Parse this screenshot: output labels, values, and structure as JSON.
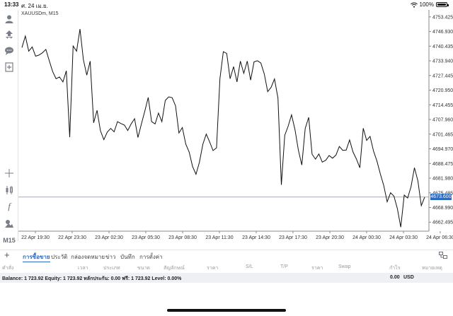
{
  "status_bar": {
    "time": "13:33",
    "date": "ศ. 24 เม.ย.",
    "battery": "100%"
  },
  "toolbar": {
    "items": [
      {
        "name": "profile-icon"
      },
      {
        "name": "trade-arrows-icon"
      },
      {
        "name": "chat-icon"
      },
      {
        "name": "add-document-icon"
      },
      {
        "name": "crosshair-icon"
      },
      {
        "name": "candlesticks-icon"
      },
      {
        "name": "indicator-icon"
      },
      {
        "name": "objects-icon"
      }
    ],
    "timeframe": "M15"
  },
  "chart_data": {
    "type": "line",
    "symbol_label": "XAUUSDm, M15",
    "y_ticks": [
      "4753.425",
      "4746.930",
      "4740.435",
      "4733.940",
      "4727.445",
      "4720.950",
      "4714.455",
      "4707.960",
      "4701.465",
      "4694.970",
      "4688.475",
      "4681.980",
      "4675.485",
      "4668.990",
      "4662.495"
    ],
    "x_ticks": [
      "22 Apr 19:30",
      "22 Apr 23:30",
      "23 Apr 02:30",
      "23 Apr 05:30",
      "23 Apr 08:30",
      "23 Apr 11:30",
      "23 Apr 14:30",
      "23 Apr 17:30",
      "23 Apr 20:30",
      "24 Apr 00:30",
      "24 Apr 03:30",
      "24 Apr 06:30"
    ],
    "ylim": [
      4658.5,
      4756.5
    ],
    "current_price": "4673.600",
    "current_price_value": 4673.6,
    "series": [
      {
        "values": [
          4739.8,
          4744.9,
          4738.2,
          4740.1,
          4736.0,
          4736.5,
          4737.5,
          4739.0,
          4734.0,
          4729.2,
          4726.0,
          4726.8,
          4724.6,
          4729.5,
          4700.1,
          4740.5,
          4738.2,
          4748.0,
          4734.5,
          4727.6,
          4733.8,
          4706.5,
          4712.0,
          4703.0,
          4699.0,
          4702.4,
          4704.0,
          4702.5,
          4707.0,
          4706.2,
          4705.5,
          4703.1,
          4706.0,
          4708.3,
          4700.0,
          4706.0,
          4711.7,
          4717.7,
          4707.0,
          4706.0,
          4710.8,
          4707.0,
          4716.4,
          4718.0,
          4717.6,
          4714.0,
          4702.0,
          4704.4,
          4697.0,
          4693.5,
          4687.1,
          4683.7,
          4689.0,
          4697.0,
          4701.5,
          4698.0,
          4694.2,
          4695.4,
          4726.0,
          4738.0,
          4737.2,
          4726.0,
          4731.4,
          4724.6,
          4733.8,
          4728.4,
          4733.8,
          4725.4,
          4733.5,
          4734.0,
          4733.0,
          4728.1,
          4720.3,
          4722.2,
          4725.9,
          4717.5,
          4679.0,
          4701.0,
          4705.0,
          4710.0,
          4703.4,
          4694.3,
          4687.8,
          4704.0,
          4708.9,
          4692.6,
          4690.4,
          4692.7,
          4689.1,
          4689.9,
          4692.0,
          4690.8,
          4692.2,
          4696.0,
          4694.3,
          4694.4,
          4698.9,
          4693.6,
          4690.4,
          4686.6,
          4704.1,
          4698.7,
          4700.5,
          4694.0,
          4689.6,
          4683.9,
          4678.8,
          4671.5,
          4675.5,
          4674.0,
          4668.5,
          4660.3,
          4674.5,
          4673.2,
          4678.2,
          4686.6,
          4680.8,
          4669.8,
          4673.6
        ]
      }
    ],
    "grid": false,
    "legend": "none"
  },
  "tabs": {
    "items": [
      "การซื้อขาย",
      "ประวัติ",
      "กล่องจดหมาย",
      "ข่าว",
      "บันทึก",
      "การตั้งค่า"
    ],
    "active": 0
  },
  "columns": [
    "คำสั่ง",
    "เวลา",
    "ประเภท",
    "ขนาด",
    "สัญลักษณ์",
    "ราคา",
    "S/L",
    "T/P",
    "ราคา",
    "Swap",
    "กำไร",
    "หมายเหตุ"
  ],
  "balance": {
    "text": "Balance: 1 723.92 Equity: 1 723.92 หลักประกัน: 0.00 ฟรี: 1 723.92 Level: 0.00%",
    "profit": "0.00",
    "currency": "USD"
  },
  "colors": {
    "accent": "#2e6bbd",
    "line": "#111111",
    "price_line": "#8a8f99"
  }
}
